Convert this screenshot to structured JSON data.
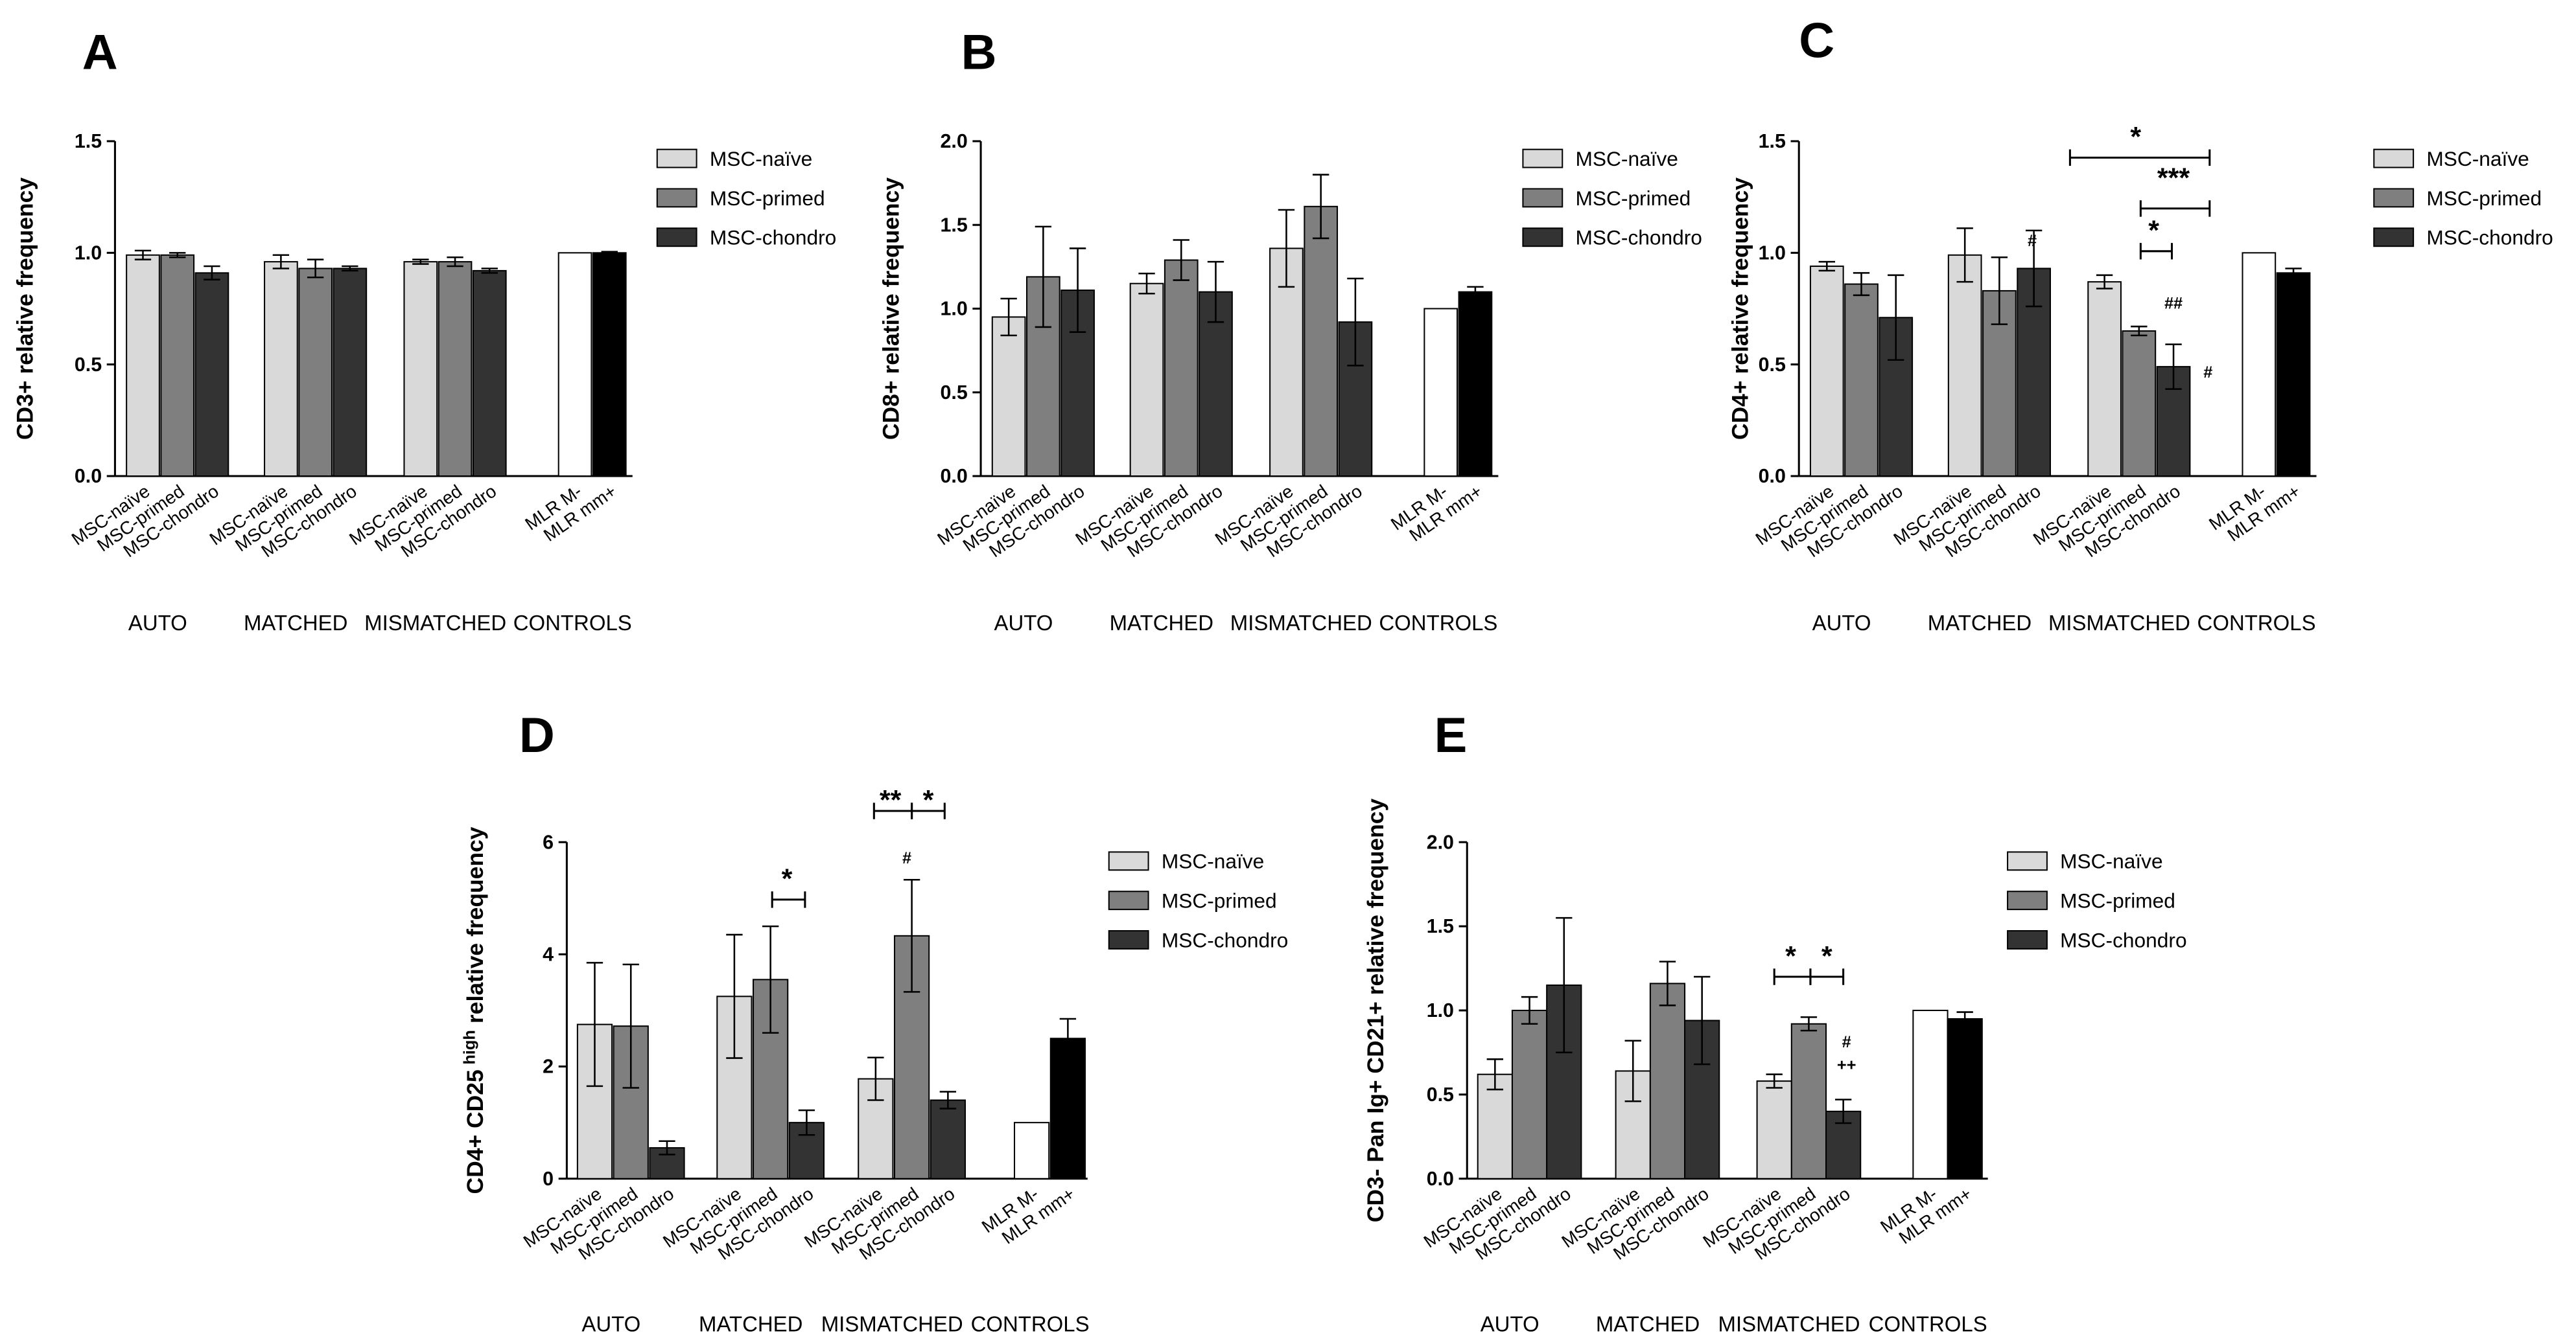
{
  "chart_data": [
    {
      "type": "bar",
      "panel": "A",
      "ylabel": "CD3+ relative frequency",
      "ylim": [
        0,
        1.5
      ],
      "yticks": [
        {
          "value": 0,
          "label": "0.0"
        },
        {
          "value": 0.5,
          "label": "0.5"
        },
        {
          "value": 1,
          "label": "1.0"
        },
        {
          "value": 1.5,
          "label": "1.5"
        }
      ],
      "legend": [
        {
          "name": "MSC-naïve",
          "color": "#d9d9d9"
        },
        {
          "name": "MSC-primed",
          "color": "#7f7f7f"
        },
        {
          "name": "MSC-chondro",
          "color": "#333333"
        }
      ],
      "groups": [
        {
          "name": "AUTO",
          "categories": [
            "MSC-naïve",
            "MSC-primed",
            "MSC-chondro"
          ],
          "colors": [
            "#d9d9d9",
            "#7f7f7f",
            "#333333"
          ],
          "values": [
            0.99,
            0.99,
            0.91
          ],
          "errors": [
            0.02,
            0.01,
            0.03
          ]
        },
        {
          "name": "MATCHED",
          "categories": [
            "MSC-naïve",
            "MSC-primed",
            "MSC-chondro"
          ],
          "colors": [
            "#d9d9d9",
            "#7f7f7f",
            "#333333"
          ],
          "values": [
            0.96,
            0.93,
            0.93
          ],
          "errors": [
            0.03,
            0.04,
            0.01
          ]
        },
        {
          "name": "MISMATCHED",
          "categories": [
            "MSC-naïve",
            "MSC-primed",
            "MSC-chondro"
          ],
          "colors": [
            "#d9d9d9",
            "#7f7f7f",
            "#333333"
          ],
          "values": [
            0.96,
            0.96,
            0.92
          ],
          "errors": [
            0.01,
            0.02,
            0.01
          ]
        },
        {
          "name": "CONTROLS",
          "categories": [
            "MLR M-",
            "MLR mm+"
          ],
          "colors": [
            "#ffffff",
            "#000000"
          ],
          "values": [
            1.0,
            1.0
          ],
          "errors": [
            0,
            0.005
          ]
        }
      ],
      "annotations": []
    },
    {
      "type": "bar",
      "panel": "B",
      "ylabel": "CD8+ relative frequency",
      "ylim": [
        0,
        2
      ],
      "yticks": [
        {
          "value": 0,
          "label": "0.0"
        },
        {
          "value": 0.5,
          "label": "0.5"
        },
        {
          "value": 1,
          "label": "1.0"
        },
        {
          "value": 1.5,
          "label": "1.5"
        },
        {
          "value": 2,
          "label": "2.0"
        }
      ],
      "legend": [
        {
          "name": "MSC-naïve",
          "color": "#d9d9d9"
        },
        {
          "name": "MSC-primed",
          "color": "#7f7f7f"
        },
        {
          "name": "MSC-chondro",
          "color": "#333333"
        }
      ],
      "groups": [
        {
          "name": "AUTO",
          "categories": [
            "MSC-naïve",
            "MSC-primed",
            "MSC-chondro"
          ],
          "colors": [
            "#d9d9d9",
            "#7f7f7f",
            "#333333"
          ],
          "values": [
            0.95,
            1.19,
            1.11
          ],
          "errors": [
            0.11,
            0.3,
            0.25
          ]
        },
        {
          "name": "MATCHED",
          "categories": [
            "MSC-naïve",
            "MSC-primed",
            "MSC-chondro"
          ],
          "colors": [
            "#d9d9d9",
            "#7f7f7f",
            "#333333"
          ],
          "values": [
            1.15,
            1.29,
            1.1
          ],
          "errors": [
            0.06,
            0.12,
            0.18
          ]
        },
        {
          "name": "MISMATCHED",
          "categories": [
            "MSC-naïve",
            "MSC-primed",
            "MSC-chondro"
          ],
          "colors": [
            "#d9d9d9",
            "#7f7f7f",
            "#333333"
          ],
          "values": [
            1.36,
            1.61,
            0.92
          ],
          "errors": [
            0.23,
            0.19,
            0.26
          ]
        },
        {
          "name": "CONTROLS",
          "categories": [
            "MLR M-",
            "MLR mm+"
          ],
          "colors": [
            "#ffffff",
            "#000000"
          ],
          "values": [
            1.0,
            1.1
          ],
          "errors": [
            0,
            0.03
          ]
        }
      ],
      "annotations": []
    },
    {
      "type": "bar",
      "panel": "C",
      "ylabel": "CD4+ relative frequency",
      "ylim": [
        0,
        1.5
      ],
      "yticks": [
        {
          "value": 0,
          "label": "0.0"
        },
        {
          "value": 0.5,
          "label": "0.5"
        },
        {
          "value": 1,
          "label": "1.0"
        },
        {
          "value": 1.5,
          "label": "1.5"
        }
      ],
      "legend": [
        {
          "name": "MSC-naïve",
          "color": "#d9d9d9"
        },
        {
          "name": "MSC-primed",
          "color": "#7f7f7f"
        },
        {
          "name": "MSC-chondro",
          "color": "#333333"
        }
      ],
      "groups": [
        {
          "name": "AUTO",
          "categories": [
            "MSC-naïve",
            "MSC-primed",
            "MSC-chondro"
          ],
          "colors": [
            "#d9d9d9",
            "#7f7f7f",
            "#333333"
          ],
          "values": [
            0.94,
            0.86,
            0.71
          ],
          "errors": [
            0.02,
            0.05,
            0.19
          ]
        },
        {
          "name": "MATCHED",
          "categories": [
            "MSC-naïve",
            "MSC-primed",
            "MSC-chondro"
          ],
          "colors": [
            "#d9d9d9",
            "#7f7f7f",
            "#333333"
          ],
          "values": [
            0.99,
            0.83,
            0.93
          ],
          "errors": [
            0.12,
            0.15,
            0.17
          ]
        },
        {
          "name": "MISMATCHED",
          "categories": [
            "MSC-naïve",
            "MSC-primed",
            "MSC-chondro"
          ],
          "colors": [
            "#d9d9d9",
            "#7f7f7f",
            "#333333"
          ],
          "values": [
            0.87,
            0.65,
            0.49
          ],
          "errors": [
            0.03,
            0.02,
            0.1
          ]
        },
        {
          "name": "CONTROLS",
          "categories": [
            "MLR M-",
            "MLR mm+"
          ],
          "colors": [
            "#ffffff",
            "#000000"
          ],
          "values": [
            1.0,
            0.91
          ],
          "errors": [
            0,
            0.02
          ]
        }
      ],
      "annotations": [
        "*",
        "***",
        "*",
        "#",
        "##",
        "#"
      ]
    },
    {
      "type": "bar",
      "panel": "D",
      "ylabel": "CD4+ CD25",
      "ylabel_sup": "high",
      "ylabel_after": "relative frequency",
      "ylim": [
        0,
        6
      ],
      "yticks": [
        0,
        2,
        4,
        6
      ],
      "legend": [
        {
          "name": "MSC-naïve",
          "color": "#d9d9d9"
        },
        {
          "name": "MSC-primed",
          "color": "#7f7f7f"
        },
        {
          "name": "MSC-chondro",
          "color": "#333333"
        }
      ],
      "groups": [
        {
          "name": "AUTO",
          "categories": [
            "MSC-naïve",
            "MSC-primed",
            "MSC-chondro"
          ],
          "colors": [
            "#d9d9d9",
            "#7f7f7f",
            "#333333"
          ],
          "values": [
            2.75,
            2.72,
            0.55
          ],
          "errors": [
            1.1,
            1.1,
            0.12
          ]
        },
        {
          "name": "MATCHED",
          "categories": [
            "MSC-naïve",
            "MSC-primed",
            "MSC-chondro"
          ],
          "colors": [
            "#d9d9d9",
            "#7f7f7f",
            "#333333"
          ],
          "values": [
            3.25,
            3.55,
            1.0
          ],
          "errors": [
            1.1,
            0.95,
            0.22
          ]
        },
        {
          "name": "MISMATCHED",
          "categories": [
            "MSC-naïve",
            "MSC-primed",
            "MSC-chondro"
          ],
          "colors": [
            "#d9d9d9",
            "#7f7f7f",
            "#333333"
          ],
          "values": [
            1.78,
            4.33,
            1.4
          ],
          "errors": [
            0.38,
            1.0,
            0.15
          ]
        },
        {
          "name": "CONTROLS",
          "categories": [
            "MLR M-",
            "MLR mm+"
          ],
          "colors": [
            "#ffffff",
            "#000000"
          ],
          "values": [
            1.0,
            2.5
          ],
          "errors": [
            0,
            0.35
          ]
        }
      ],
      "annotations": [
        "*",
        "**",
        "*",
        "#"
      ]
    },
    {
      "type": "bar",
      "panel": "E",
      "ylabel": "CD3- Pan Ig+ CD21+ relative frequency",
      "ylim": [
        0,
        2
      ],
      "yticks": [
        {
          "value": 0,
          "label": "0.0"
        },
        {
          "value": 0.5,
          "label": "0.5"
        },
        {
          "value": 1,
          "label": "1.0"
        },
        {
          "value": 1.5,
          "label": "1.5"
        },
        {
          "value": 2,
          "label": "2.0"
        }
      ],
      "legend": [
        {
          "name": "MSC-naïve",
          "color": "#d9d9d9"
        },
        {
          "name": "MSC-primed",
          "color": "#7f7f7f"
        },
        {
          "name": "MSC-chondro",
          "color": "#333333"
        }
      ],
      "groups": [
        {
          "name": "AUTO",
          "categories": [
            "MSC-naïve",
            "MSC-primed",
            "MSC-chondro"
          ],
          "colors": [
            "#d9d9d9",
            "#7f7f7f",
            "#333333"
          ],
          "values": [
            0.62,
            1.0,
            1.15
          ],
          "errors": [
            0.09,
            0.08,
            0.4
          ]
        },
        {
          "name": "MATCHED",
          "categories": [
            "MSC-naïve",
            "MSC-primed",
            "MSC-chondro"
          ],
          "colors": [
            "#d9d9d9",
            "#7f7f7f",
            "#333333"
          ],
          "values": [
            0.64,
            1.16,
            0.94
          ],
          "errors": [
            0.18,
            0.13,
            0.26
          ]
        },
        {
          "name": "MISMATCHED",
          "categories": [
            "MSC-naïve",
            "MSC-primed",
            "MSC-chondro"
          ],
          "colors": [
            "#d9d9d9",
            "#7f7f7f",
            "#333333"
          ],
          "values": [
            0.58,
            0.92,
            0.4
          ],
          "errors": [
            0.04,
            0.04,
            0.07
          ]
        },
        {
          "name": "CONTROLS",
          "categories": [
            "MLR M-",
            "MLR mm+"
          ],
          "colors": [
            "#ffffff",
            "#000000"
          ],
          "values": [
            1.0,
            0.95
          ],
          "errors": [
            0,
            0.04
          ]
        }
      ],
      "annotations": [
        "*",
        "*",
        "#",
        "++"
      ]
    }
  ]
}
